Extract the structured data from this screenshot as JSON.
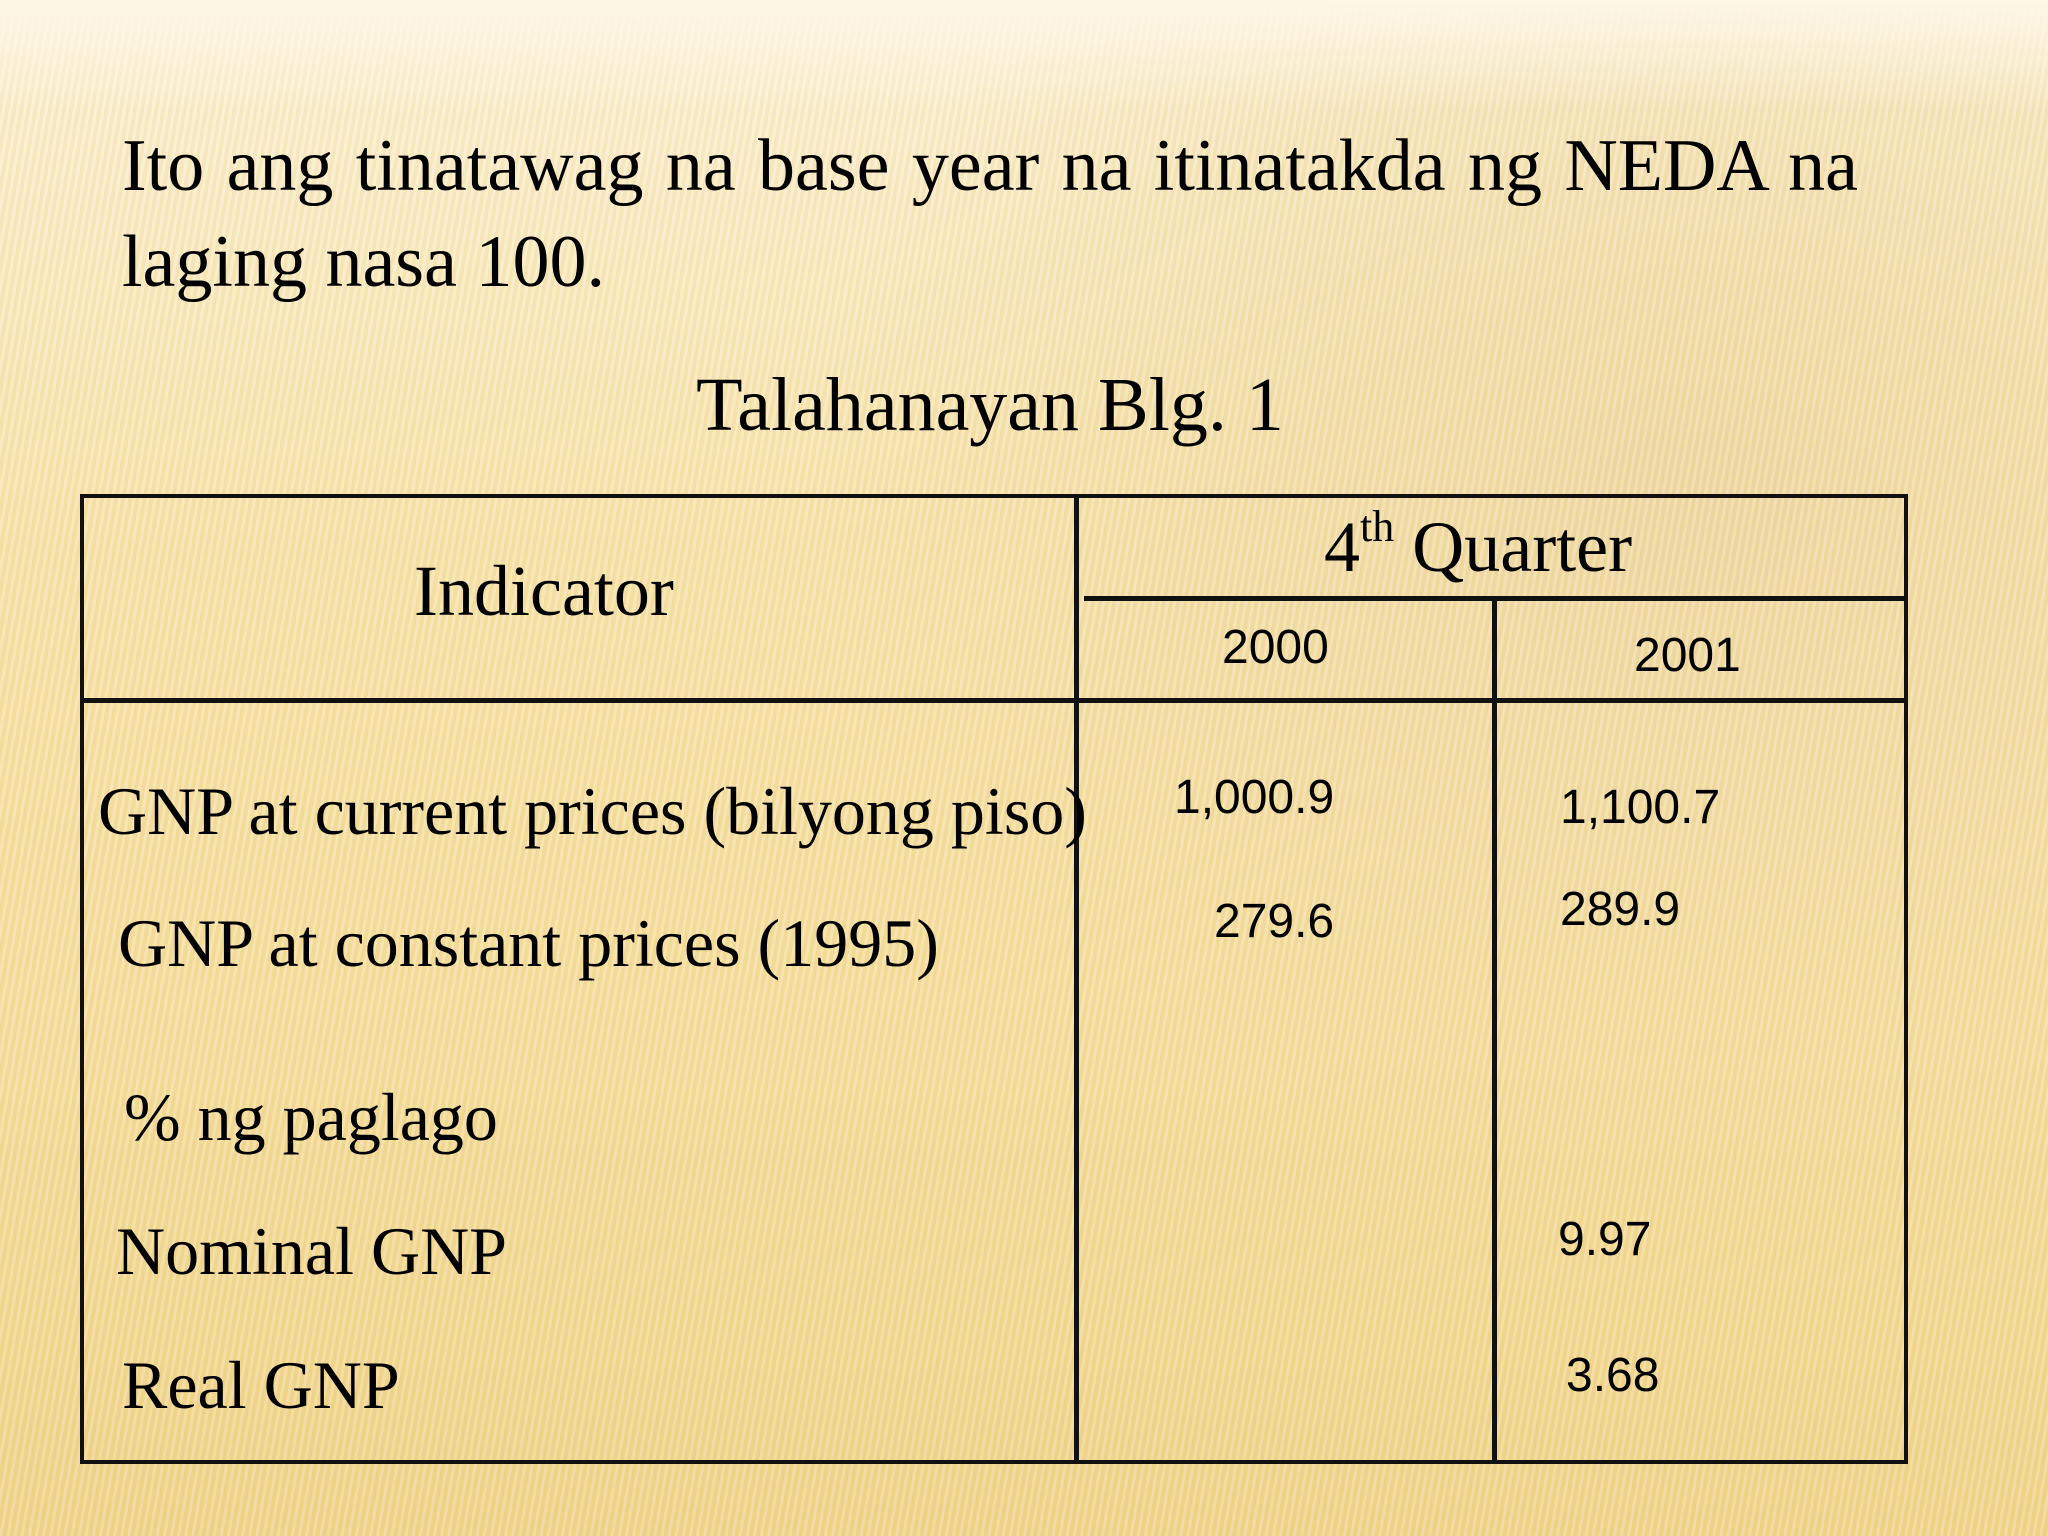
{
  "intro_text": "Ito ang tinatawag na base year na itinatakda ng NEDA na laging nasa 100.",
  "caption": "Talahanayan Blg. 1",
  "table": {
    "header_indicator": "Indicator",
    "header_quarter_number": "4",
    "header_quarter_suffix": "th",
    "header_quarter_word": "Quarter",
    "years": [
      "2000",
      "2001"
    ],
    "rows": [
      {
        "label": "GNP at current prices (bilyong piso)",
        "v2000": "1,000.9",
        "v2001": "1,100.7"
      },
      {
        "label": "GNP at constant prices (1995)",
        "v2000": "279.6",
        "v2001": "289.9"
      },
      {
        "label": "% ng paglago",
        "v2000": "",
        "v2001": ""
      },
      {
        "label": "Nominal GNP",
        "v2000": "",
        "v2001": "9.97"
      },
      {
        "label": "Real GNP",
        "v2000": "",
        "v2001": "3.68"
      }
    ]
  }
}
